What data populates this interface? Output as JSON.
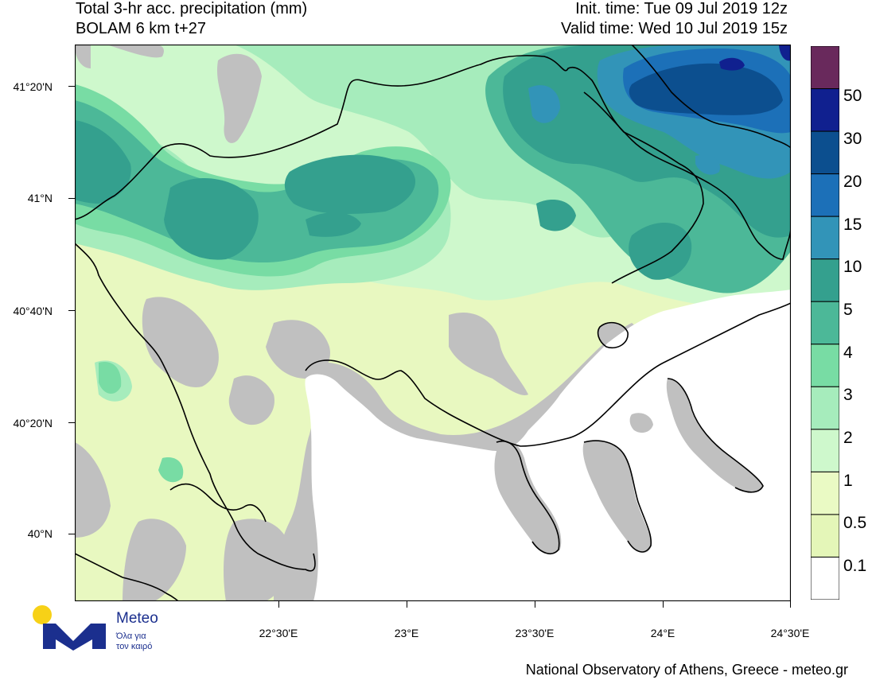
{
  "header": {
    "title_line1": "Total 3-hr acc. precipitation (mm)",
    "title_line2": "BOLAM 6 km t+27",
    "init_time": "Init. time: Tue 09 Jul 2019 12z",
    "valid_time": "Valid time: Wed 10 Jul 2019 15z"
  },
  "map": {
    "latitude_labels": [
      "41°20'N",
      "41°N",
      "40°40'N",
      "40°20'N",
      "40°N"
    ],
    "longitude_labels": [
      "22°30'E",
      "23°E",
      "23°30'E",
      "24°E",
      "24°30'E"
    ],
    "colors": {
      "land_dry": "#c0c0c0",
      "sea": "#ffffff",
      "border": "#000000"
    }
  },
  "legend": {
    "labels": [
      "50",
      "30",
      "20",
      "15",
      "10",
      "5",
      "4",
      "3",
      "2",
      "1",
      "0.5",
      "0.1"
    ],
    "colors": [
      "#69295c",
      "#10208f",
      "#0c4f8f",
      "#1c70b8",
      "#3294b8",
      "#34a08e",
      "#4cb898",
      "#78dca4",
      "#a6ecbc",
      "#cef8cc",
      "#eafac4",
      "#e4f6b8",
      "#ffffff"
    ]
  },
  "footer": {
    "credit": "National Observatory of Athens, Greece - meteo.gr"
  },
  "logo": {
    "name": "Meteo",
    "tagline1": "Όλα για",
    "tagline2": "τον καιρό",
    "colors": {
      "mark": "#1b2f8e",
      "sun": "#f7d117"
    }
  }
}
